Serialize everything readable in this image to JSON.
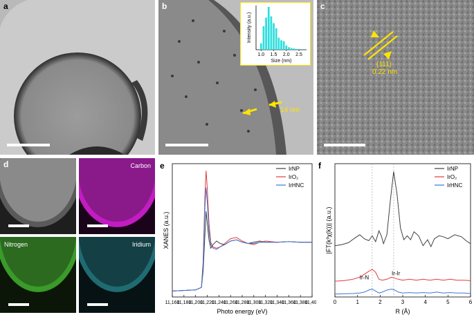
{
  "panels": {
    "a": {
      "label": "a"
    },
    "b": {
      "label": "b",
      "annotation": "14 nm",
      "inset": {
        "ylabel": "Intensity (a.u.)",
        "xlabel": "Size (nm)",
        "xticks": [
          "1.0",
          "1.5",
          "2.0",
          "2.5"
        ],
        "bins": [
          1.0,
          1.1,
          1.2,
          1.3,
          1.4,
          1.5,
          1.6,
          1.7,
          1.8,
          1.9,
          2.0,
          2.1,
          2.2,
          2.3,
          2.4,
          2.5
        ],
        "values": [
          0.15,
          0.55,
          0.75,
          1.0,
          0.78,
          0.62,
          0.5,
          0.28,
          0.22,
          0.2,
          0.1,
          0.06,
          0.04,
          0.03,
          0.02,
          0.02
        ]
      }
    },
    "c": {
      "label": "c",
      "annotation_plane": "(111)",
      "annotation_spacing": "0.22 nm"
    },
    "d": {
      "label": "d",
      "maps": [
        "",
        "Carbon",
        "Nitrogen",
        "Iridium"
      ],
      "colors": [
        "#9a9a9a",
        "#c21cc2",
        "#3a9a2a",
        "#2aa5b0"
      ]
    },
    "e": {
      "label": "e"
    },
    "f": {
      "label": "f"
    }
  },
  "chart_data": [
    {
      "type": "line",
      "panel": "e",
      "xlabel": "Photo energy (eV)",
      "ylabel": "XANES (a.u.)",
      "xlim": [
        11160,
        11400
      ],
      "xticks": [
        "11,160",
        "11,180",
        "11,200",
        "11,220",
        "11,240",
        "11,260",
        "11,280",
        "11,300",
        "11,320",
        "11,340",
        "11,360",
        "11,380",
        "11,400"
      ],
      "legend_position": "top-right",
      "series": [
        {
          "name": "IrNP",
          "color": "#404040",
          "x": [
            11160,
            11200,
            11210,
            11213,
            11216,
            11218,
            11220,
            11223,
            11226,
            11230,
            11236,
            11242,
            11250,
            11260,
            11270,
            11280,
            11290,
            11300,
            11310,
            11320,
            11340,
            11360,
            11380,
            11400
          ],
          "y": [
            0.05,
            0.06,
            0.08,
            0.22,
            0.52,
            0.72,
            0.62,
            0.48,
            0.41,
            0.44,
            0.47,
            0.45,
            0.44,
            0.47,
            0.48,
            0.46,
            0.45,
            0.46,
            0.47,
            0.46,
            0.46,
            0.465,
            0.46,
            0.46
          ]
        },
        {
          "name": "IrO₂",
          "color": "#e23b3b",
          "x": [
            11160,
            11200,
            11210,
            11213,
            11216,
            11218,
            11220,
            11223,
            11226,
            11230,
            11236,
            11242,
            11250,
            11260,
            11270,
            11280,
            11290,
            11300,
            11310,
            11320,
            11340,
            11360,
            11380,
            11400
          ],
          "y": [
            0.05,
            0.06,
            0.08,
            0.3,
            0.85,
            1.06,
            0.92,
            0.62,
            0.46,
            0.42,
            0.41,
            0.42,
            0.45,
            0.49,
            0.5,
            0.47,
            0.45,
            0.44,
            0.46,
            0.47,
            0.46,
            0.465,
            0.46,
            0.46
          ]
        },
        {
          "name": "IrHNC",
          "color": "#3a75d6",
          "x": [
            11160,
            11200,
            11210,
            11213,
            11216,
            11218,
            11220,
            11223,
            11226,
            11230,
            11236,
            11242,
            11250,
            11260,
            11270,
            11280,
            11290,
            11300,
            11310,
            11320,
            11340,
            11360,
            11380,
            11400
          ],
          "y": [
            0.05,
            0.06,
            0.08,
            0.28,
            0.75,
            0.92,
            0.8,
            0.55,
            0.44,
            0.41,
            0.4,
            0.42,
            0.44,
            0.47,
            0.48,
            0.46,
            0.45,
            0.45,
            0.46,
            0.46,
            0.46,
            0.465,
            0.46,
            0.46
          ]
        }
      ]
    },
    {
      "type": "line",
      "panel": "f",
      "xlabel": "R (Å)",
      "ylabel": "|FT(k³χ(k))| (a.u.)",
      "xlim": [
        0,
        6
      ],
      "xticks": [
        "0",
        "1",
        "2",
        "3",
        "4",
        "5",
        "6"
      ],
      "legend_position": "top-right",
      "annotations": [
        "Ir-N",
        "Ir-Ir"
      ],
      "reference_lines": [
        1.65,
        2.6
      ],
      "series": [
        {
          "name": "IrNP",
          "color": "#404040",
          "x": [
            0,
            0.3,
            0.6,
            0.9,
            1.1,
            1.3,
            1.5,
            1.65,
            1.8,
            1.95,
            2.05,
            2.15,
            2.3,
            2.45,
            2.6,
            2.75,
            2.9,
            3.05,
            3.2,
            3.35,
            3.5,
            3.7,
            3.9,
            4.1,
            4.25,
            4.4,
            4.6,
            4.8,
            5.0,
            5.3,
            5.6,
            5.8,
            6.0
          ],
          "y": [
            0.2,
            0.21,
            0.23,
            0.28,
            0.31,
            0.27,
            0.25,
            0.3,
            0.24,
            0.35,
            0.3,
            0.22,
            0.31,
            0.65,
            0.95,
            0.72,
            0.38,
            0.26,
            0.3,
            0.26,
            0.34,
            0.3,
            0.2,
            0.26,
            0.19,
            0.27,
            0.3,
            0.29,
            0.27,
            0.31,
            0.29,
            0.25,
            0.22
          ]
        },
        {
          "name": "IrO₂",
          "color": "#e23b3b",
          "x": [
            0,
            0.4,
            0.8,
            1.1,
            1.3,
            1.5,
            1.65,
            1.8,
            1.95,
            2.1,
            2.3,
            2.5,
            2.65,
            2.8,
            3.0,
            3.3,
            3.6,
            3.9,
            4.2,
            4.5,
            4.8,
            5.1,
            5.4,
            5.7,
            6.0
          ],
          "y": [
            0.08,
            0.085,
            0.1,
            0.12,
            0.15,
            0.18,
            0.2,
            0.17,
            0.1,
            0.09,
            0.1,
            0.12,
            0.11,
            0.1,
            0.09,
            0.1,
            0.09,
            0.1,
            0.09,
            0.1,
            0.09,
            0.1,
            0.09,
            0.09,
            0.085
          ]
        },
        {
          "name": "IrHNC",
          "color": "#3a75d6",
          "x": [
            0,
            0.4,
            0.8,
            1.1,
            1.3,
            1.5,
            1.65,
            1.8,
            1.95,
            2.1,
            2.3,
            2.5,
            2.65,
            2.8,
            3.0,
            3.3,
            3.6,
            3.9,
            4.2,
            4.5,
            4.8,
            5.1,
            5.4,
            5.7,
            6.0
          ],
          "y": [
            0.01,
            0.012,
            0.015,
            0.02,
            0.03,
            0.05,
            0.06,
            0.04,
            0.02,
            0.03,
            0.05,
            0.06,
            0.05,
            0.03,
            0.02,
            0.025,
            0.02,
            0.025,
            0.02,
            0.03,
            0.02,
            0.025,
            0.02,
            0.02,
            0.015
          ]
        }
      ]
    }
  ]
}
